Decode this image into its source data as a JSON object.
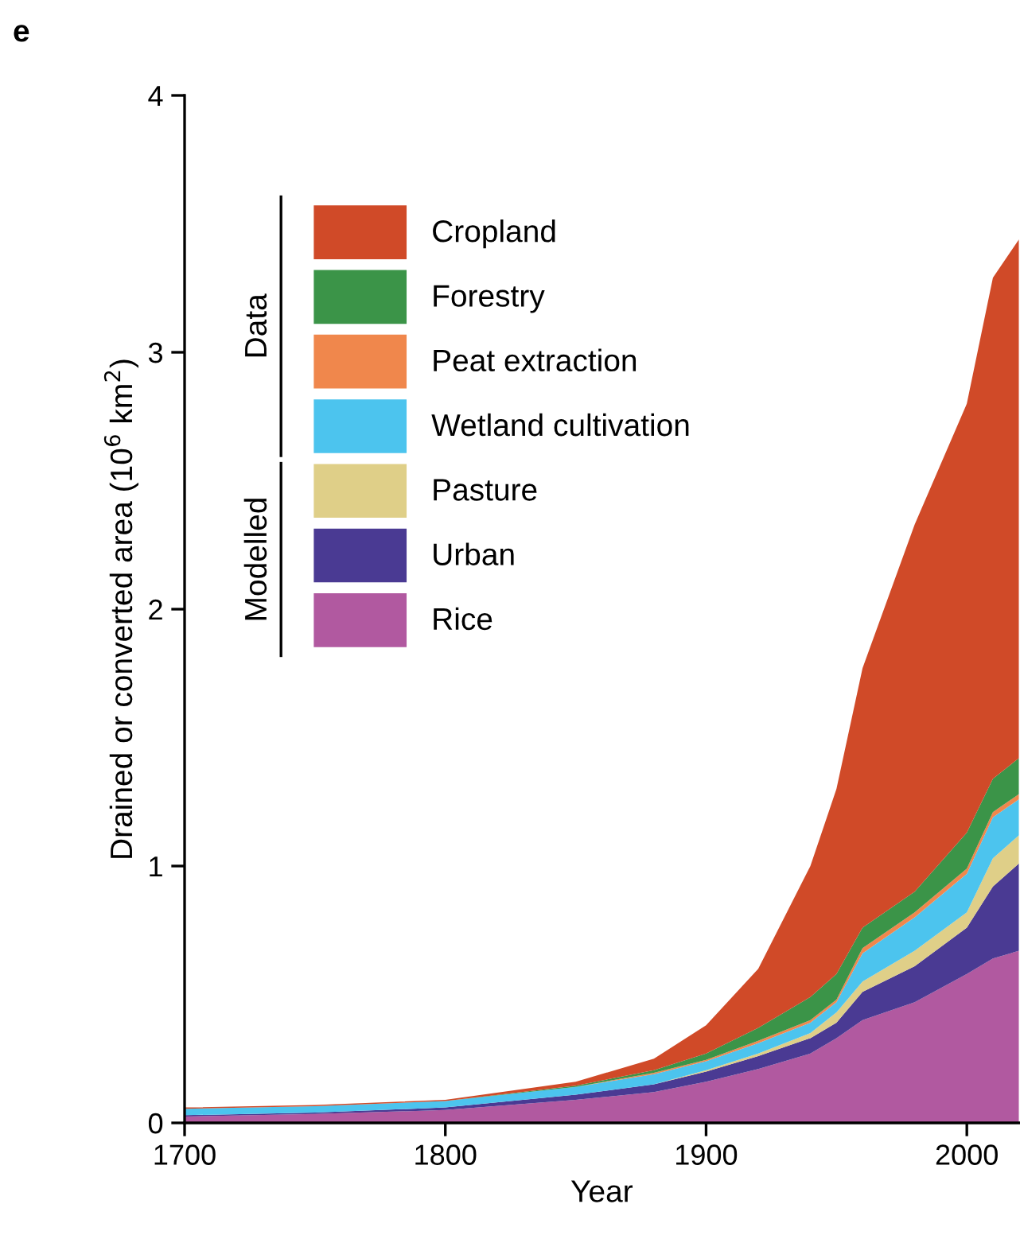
{
  "chart_data": {
    "type": "area",
    "stacked": true,
    "title": "e",
    "xlabel": "Year",
    "ylabel": "Drained or converted area (10$^{6}$ km$^{2}$)",
    "x": [
      1700,
      1750,
      1800,
      1850,
      1880,
      1900,
      1920,
      1940,
      1950,
      1960,
      1980,
      2000,
      2010,
      2020
    ],
    "series": [
      {
        "name": "Rice",
        "color": "#b159a0",
        "values": [
          0.025,
          0.035,
          0.05,
          0.09,
          0.12,
          0.16,
          0.21,
          0.27,
          0.33,
          0.4,
          0.47,
          0.58,
          0.64,
          0.67
        ]
      },
      {
        "name": "Urban",
        "color": "#4a3a93",
        "values": [
          0.005,
          0.005,
          0.01,
          0.02,
          0.03,
          0.04,
          0.05,
          0.06,
          0.06,
          0.11,
          0.14,
          0.18,
          0.28,
          0.34
        ]
      },
      {
        "name": "Pasture",
        "color": "#dfcf88",
        "values": [
          0,
          0,
          0,
          0,
          0,
          0.005,
          0.01,
          0.02,
          0.04,
          0.04,
          0.06,
          0.06,
          0.11,
          0.11
        ]
      },
      {
        "name": "Wetland cultivation",
        "color": "#4cc4ee",
        "values": [
          0.025,
          0.025,
          0.025,
          0.03,
          0.04,
          0.035,
          0.04,
          0.04,
          0.04,
          0.11,
          0.13,
          0.15,
          0.16,
          0.14
        ]
      },
      {
        "name": "Peat extraction",
        "color": "#f0874c",
        "values": [
          0,
          0,
          0,
          0,
          0.005,
          0.005,
          0.01,
          0.01,
          0.01,
          0.02,
          0.02,
          0.02,
          0.02,
          0.02
        ]
      },
      {
        "name": "Forestry",
        "color": "#3b9448",
        "values": [
          0,
          0,
          0,
          0.005,
          0.01,
          0.025,
          0.05,
          0.09,
          0.1,
          0.08,
          0.08,
          0.14,
          0.13,
          0.14
        ]
      },
      {
        "name": "Cropland",
        "color": "#d04a28",
        "values": [
          0.005,
          0.005,
          0.005,
          0.015,
          0.045,
          0.11,
          0.23,
          0.51,
          0.72,
          1.01,
          1.43,
          1.67,
          1.95,
          2.02
        ]
      }
    ],
    "xlim": [
      1700,
      2020
    ],
    "xticks": [
      1700,
      1800,
      1900,
      2000
    ],
    "ylim": [
      0,
      4
    ],
    "yticks": [
      0,
      1,
      2,
      3,
      4
    ],
    "legend": "top left",
    "grid": false,
    "annotations": [
      "Data",
      "Modelled"
    ]
  }
}
